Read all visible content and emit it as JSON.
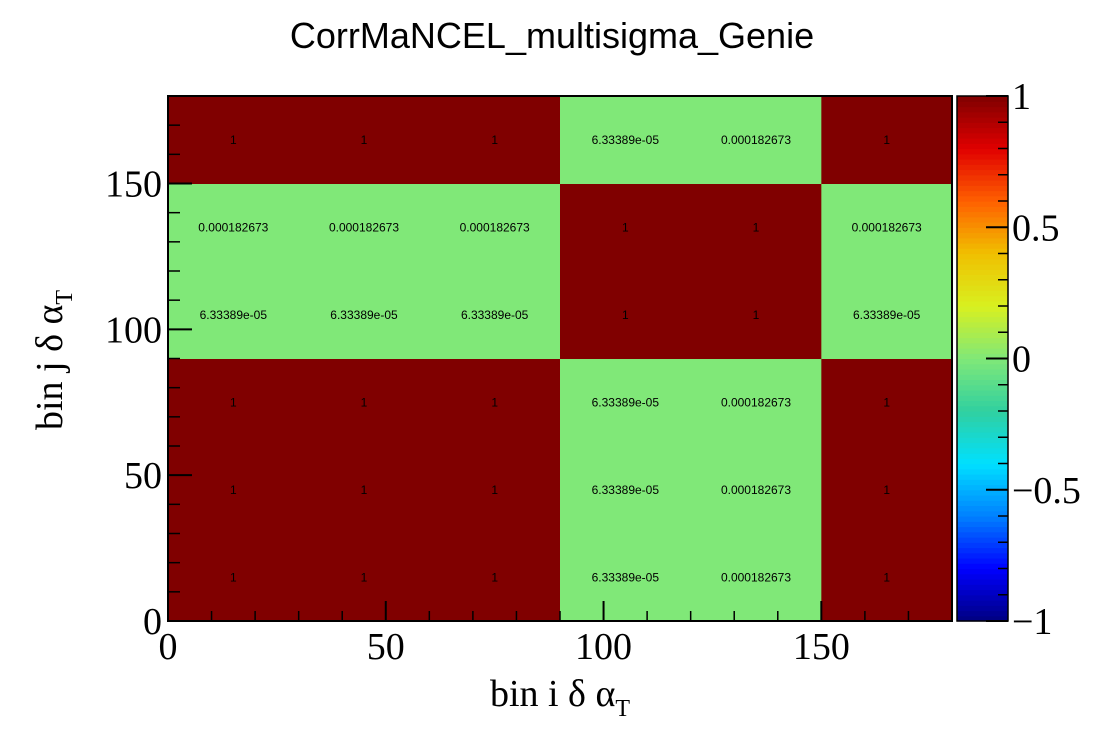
{
  "chart_data": {
    "type": "heatmap",
    "title": "CorrMaNCEL_multisigma_Genie",
    "xlabel": "bin i δ α",
    "xlabel_sub": "T",
    "ylabel": "bin j δ α",
    "ylabel_sub": "T",
    "x_edges": [
      0,
      30,
      60,
      90,
      120,
      150,
      180
    ],
    "y_edges": [
      0,
      30,
      60,
      90,
      120,
      150,
      180
    ],
    "xlim": [
      0,
      180
    ],
    "ylim": [
      0,
      180
    ],
    "x_ticks": [
      0,
      50,
      100,
      150
    ],
    "y_ticks": [
      0,
      50,
      100,
      150
    ],
    "zlim": [
      -1,
      1
    ],
    "z_ticks": [
      {
        "value": 1,
        "label": "1"
      },
      {
        "value": 0.5,
        "label": "0.5"
      },
      {
        "value": 0,
        "label": "0"
      },
      {
        "value": -0.5,
        "label": "−0.5"
      },
      {
        "value": -1,
        "label": "−1"
      }
    ],
    "values": [
      [
        1,
        1,
        1,
        6.33389e-05,
        0.000182673,
        1
      ],
      [
        1,
        1,
        1,
        6.33389e-05,
        0.000182673,
        1
      ],
      [
        1,
        1,
        1,
        6.33389e-05,
        0.000182673,
        1
      ],
      [
        6.33389e-05,
        6.33389e-05,
        6.33389e-05,
        1,
        1,
        6.33389e-05
      ],
      [
        0.000182673,
        0.000182673,
        0.000182673,
        1,
        1,
        0.000182673
      ],
      [
        1,
        1,
        1,
        6.33389e-05,
        0.000182673,
        1
      ]
    ],
    "value_labels": [
      [
        "1",
        "1",
        "1",
        "6.33389e-05",
        "0.000182673",
        "1"
      ],
      [
        "1",
        "1",
        "1",
        "6.33389e-05",
        "0.000182673",
        "1"
      ],
      [
        "1",
        "1",
        "1",
        "6.33389e-05",
        "0.000182673",
        "1"
      ],
      [
        "6.33389e-05",
        "6.33389e-05",
        "6.33389e-05",
        "1",
        "1",
        "6.33389e-05"
      ],
      [
        "0.000182673",
        "0.000182673",
        "0.000182673",
        "1",
        "1",
        "0.000182673"
      ],
      [
        "1",
        "1",
        "1",
        "6.33389e-05",
        "0.000182673",
        "1"
      ]
    ],
    "colormap": [
      "#000080",
      "#0000ff",
      "#0080ff",
      "#00e0ff",
      "#30d0a0",
      "#80e878",
      "#d8f020",
      "#f0c000",
      "#ff6000",
      "#e00000",
      "#800000"
    ],
    "grid": false,
    "legend": "colorbar-right"
  }
}
